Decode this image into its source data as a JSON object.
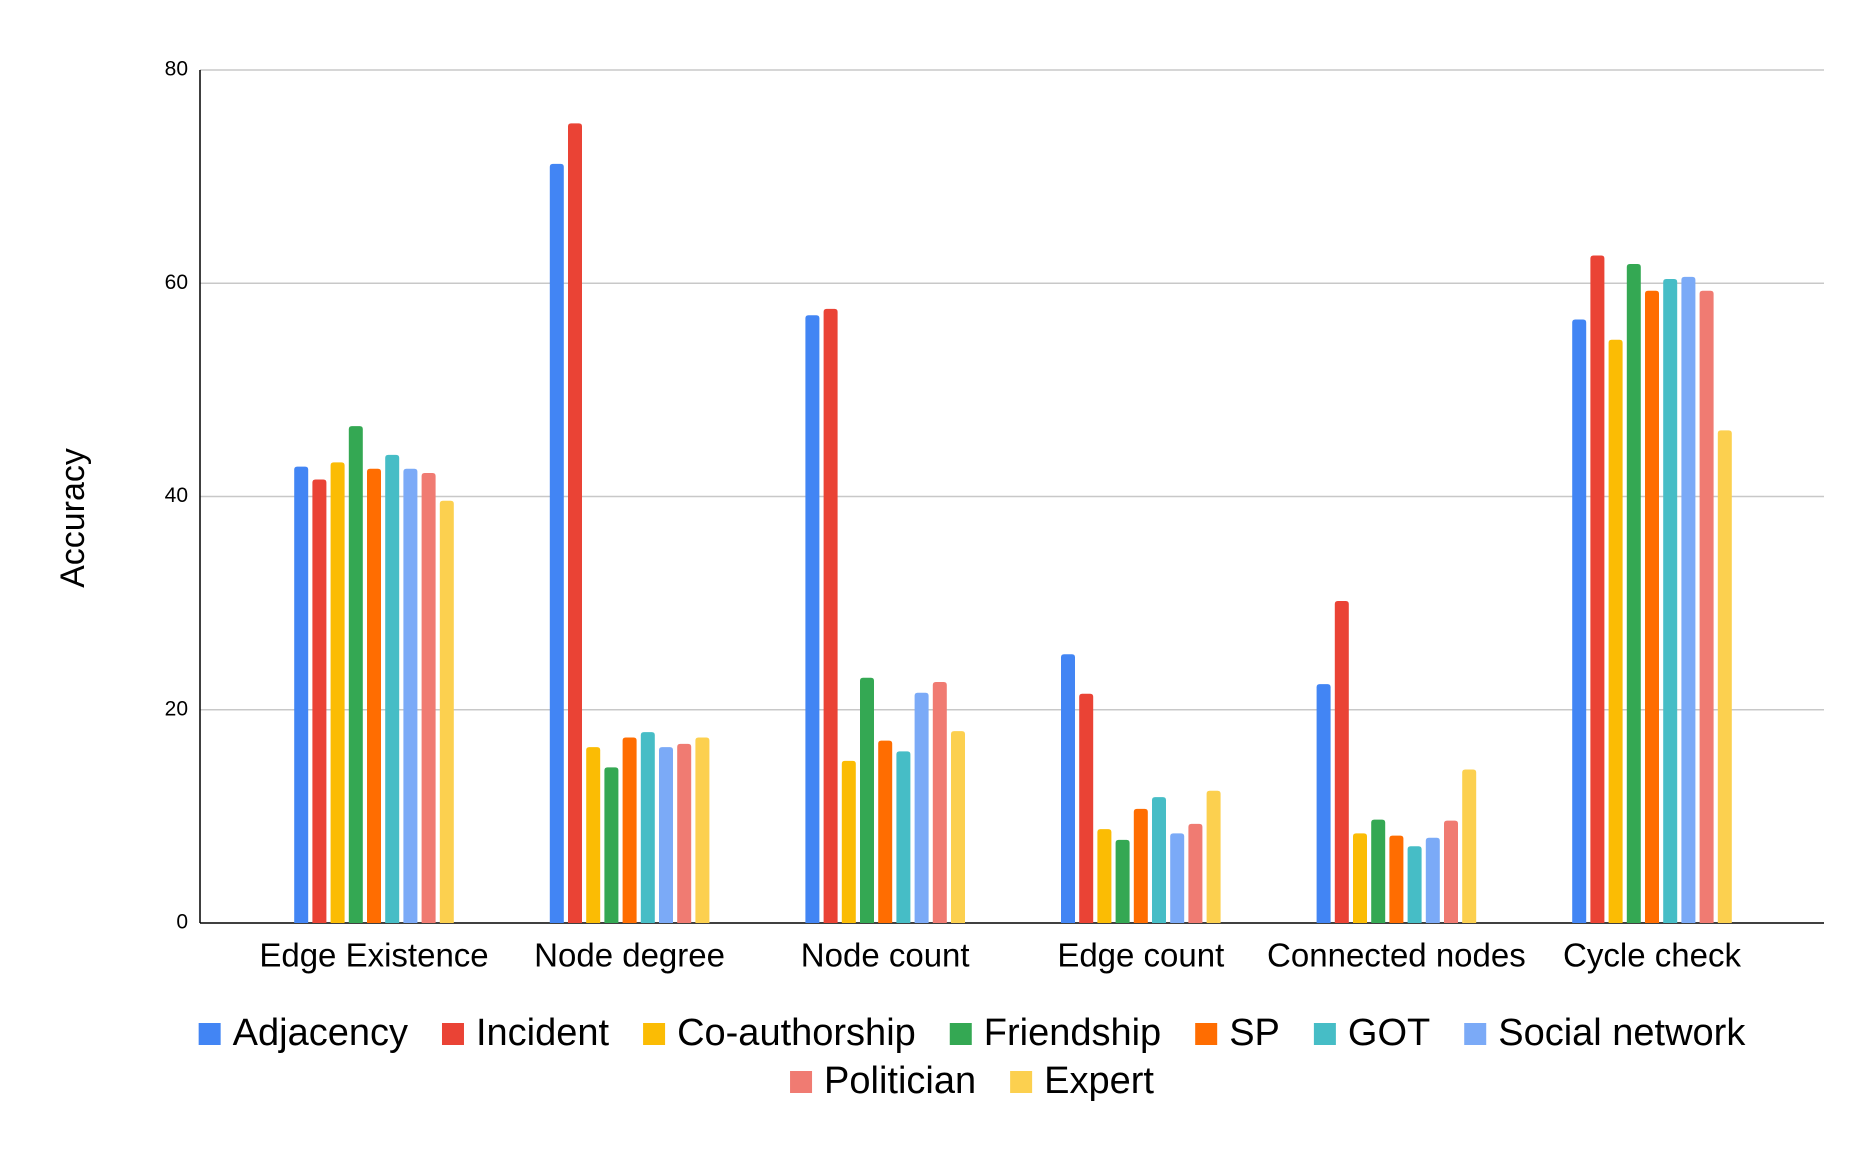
{
  "chart_data": {
    "type": "bar",
    "y_label": "Accuracy",
    "categories": [
      "Edge Existence",
      "Node degree",
      "Node count",
      "Edge count",
      "Connected nodes",
      "Cycle check"
    ],
    "series": [
      {
        "name": "Adjacency",
        "color": "#4285f4",
        "values": [
          42.8,
          71.2,
          57.0,
          25.2,
          22.4,
          56.6
        ]
      },
      {
        "name": "Incident",
        "color": "#ea4335",
        "values": [
          41.6,
          75.0,
          57.6,
          21.5,
          30.2,
          62.6
        ]
      },
      {
        "name": "Co-authorship",
        "color": "#fbbc04",
        "values": [
          43.2,
          16.5,
          15.2,
          8.8,
          8.4,
          54.7
        ]
      },
      {
        "name": "Friendship",
        "color": "#34a853",
        "values": [
          46.6,
          14.6,
          23.0,
          7.8,
          9.7,
          61.8
        ]
      },
      {
        "name": "SP",
        "color": "#ff6d01",
        "values": [
          42.6,
          17.4,
          17.1,
          10.7,
          8.2,
          59.3
        ]
      },
      {
        "name": "GOT",
        "color": "#46bdc6",
        "values": [
          43.9,
          17.9,
          16.1,
          11.8,
          7.2,
          60.4
        ]
      },
      {
        "name": "Social network",
        "color": "#7baaf7",
        "values": [
          42.6,
          16.5,
          21.6,
          8.4,
          8.0,
          60.6
        ]
      },
      {
        "name": "Politician",
        "color": "#f07b72",
        "values": [
          42.2,
          16.8,
          22.6,
          9.3,
          9.6,
          59.3
        ]
      },
      {
        "name": "Expert",
        "color": "#fcd04f",
        "values": [
          39.6,
          17.4,
          18.0,
          12.4,
          14.4,
          46.2
        ]
      }
    ],
    "ylim": [
      0,
      80
    ],
    "yticks": [
      0,
      20,
      40,
      60,
      80
    ],
    "grid": true,
    "legend": "bottom"
  }
}
